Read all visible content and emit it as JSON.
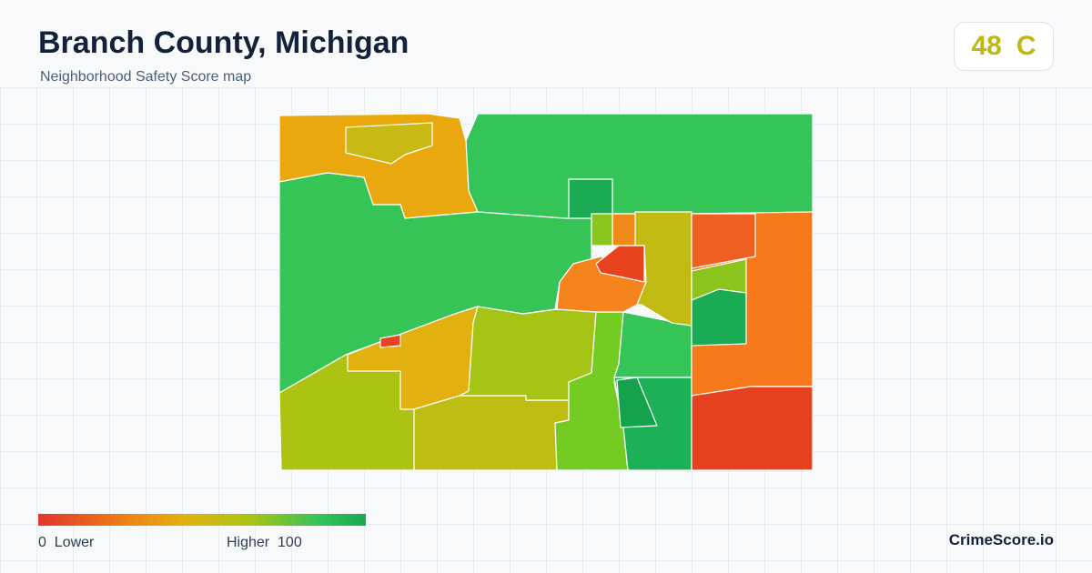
{
  "header": {
    "title": "Branch County, Michigan",
    "subtitle": "Neighborhood Safety Score map"
  },
  "score": {
    "value": 48,
    "grade": "C"
  },
  "legend": {
    "min": 0,
    "min_label": "Lower",
    "max_label": "Higher",
    "max": 100
  },
  "footer": {
    "brand": "CrimeScore.io"
  }
}
